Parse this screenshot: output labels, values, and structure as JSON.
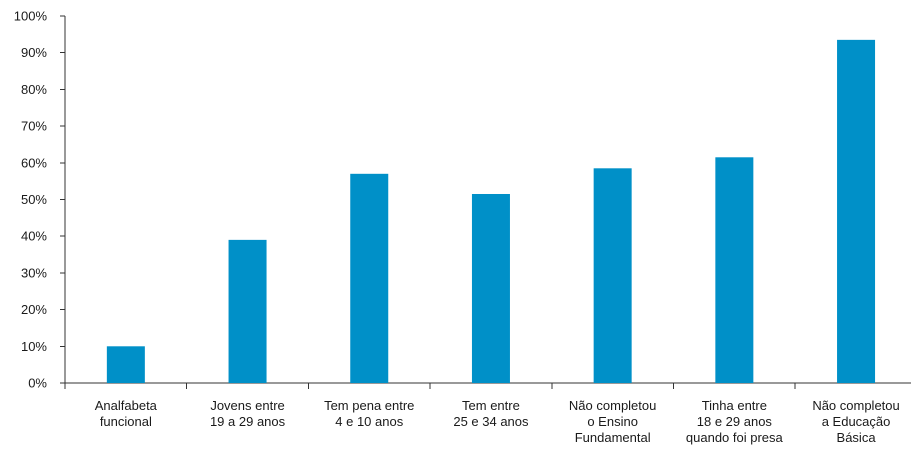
{
  "chart_data": {
    "type": "bar",
    "title": "",
    "xlabel": "",
    "ylabel": "",
    "categories": [
      "Analfabeta funcional",
      "Jovens entre 19 a 29 anos",
      "Tem pena entre 4 e 10 anos",
      "Tem entre 25 e 34 anos",
      "Não completou o Ensino Fundamental",
      "Tinha entre 18 e 29 anos quando foi presa",
      "Não completou a Educação Básica"
    ],
    "category_lines": [
      [
        "Analfabeta",
        "funcional"
      ],
      [
        "Jovens entre",
        "19 a 29 anos"
      ],
      [
        "Tem pena entre",
        "4 e 10 anos"
      ],
      [
        "Tem entre",
        "25 e 34 anos"
      ],
      [
        "Não completou",
        "o Ensino",
        "Fundamental"
      ],
      [
        "Tinha entre",
        "18 e 29 anos",
        "quando foi presa"
      ],
      [
        "Não completou",
        "a Educação",
        "Básica"
      ]
    ],
    "values": [
      10,
      39,
      57,
      51.5,
      58.5,
      61.5,
      93.5
    ],
    "ylim": [
      0,
      100
    ],
    "yticks": [
      0,
      10,
      20,
      30,
      40,
      50,
      60,
      70,
      80,
      90,
      100
    ],
    "ytick_labels": [
      "0%",
      "10%",
      "20%",
      "30%",
      "40%",
      "50%",
      "60%",
      "70%",
      "80%",
      "90%",
      "100%"
    ],
    "grid": false,
    "legend": "none",
    "bar_color": "#0090c8"
  }
}
